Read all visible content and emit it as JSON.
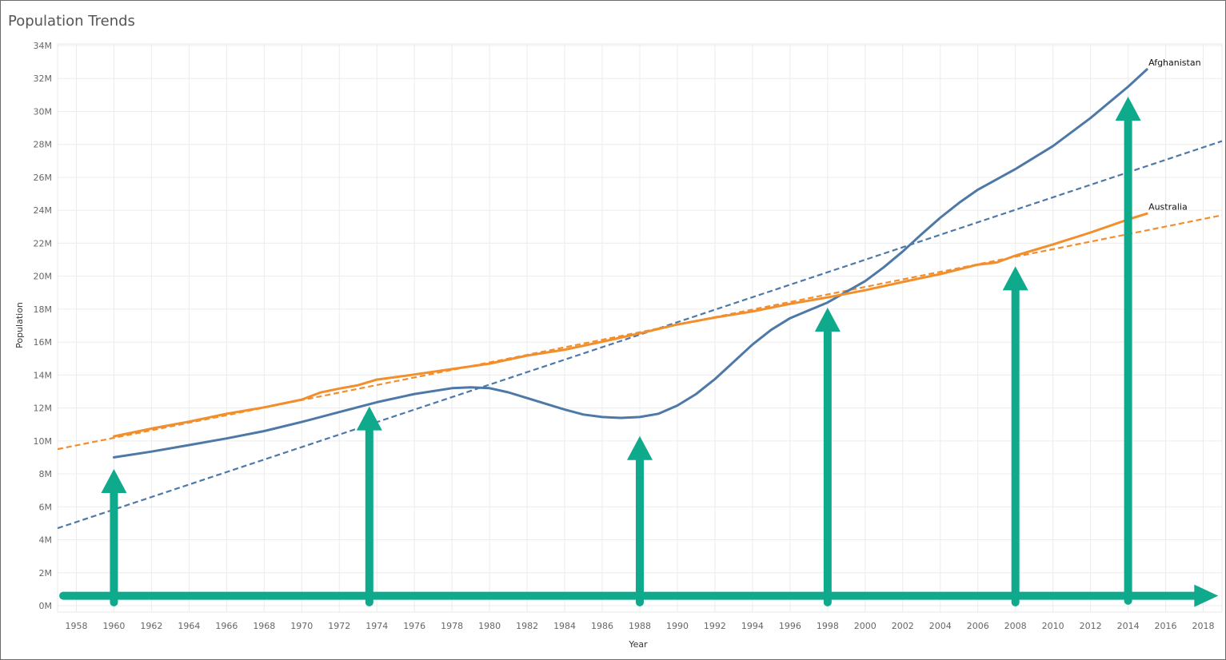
{
  "chart_data": {
    "type": "line",
    "title": "Population Trends",
    "xlabel": "Year",
    "ylabel": "Population",
    "xlim": [
      1957,
      2019
    ],
    "ylim": [
      0,
      34000000
    ],
    "grid": true,
    "x_ticks": [
      1958,
      1960,
      1962,
      1964,
      1966,
      1968,
      1970,
      1972,
      1974,
      1976,
      1978,
      1980,
      1982,
      1984,
      1986,
      1988,
      1990,
      1992,
      1994,
      1996,
      1998,
      2000,
      2002,
      2004,
      2006,
      2008,
      2010,
      2012,
      2014,
      2016,
      2018
    ],
    "y_ticks": [
      {
        "value": 0,
        "label": "0M"
      },
      {
        "value": 2000000,
        "label": "2M"
      },
      {
        "value": 4000000,
        "label": "4M"
      },
      {
        "value": 6000000,
        "label": "6M"
      },
      {
        "value": 8000000,
        "label": "8M"
      },
      {
        "value": 10000000,
        "label": "10M"
      },
      {
        "value": 12000000,
        "label": "12M"
      },
      {
        "value": 14000000,
        "label": "14M"
      },
      {
        "value": 16000000,
        "label": "16M"
      },
      {
        "value": 18000000,
        "label": "18M"
      },
      {
        "value": 20000000,
        "label": "20M"
      },
      {
        "value": 22000000,
        "label": "22M"
      },
      {
        "value": 24000000,
        "label": "24M"
      },
      {
        "value": 26000000,
        "label": "26M"
      },
      {
        "value": 28000000,
        "label": "28M"
      },
      {
        "value": 30000000,
        "label": "30M"
      },
      {
        "value": 32000000,
        "label": "32M"
      },
      {
        "value": 34000000,
        "label": "34M"
      }
    ],
    "series": [
      {
        "name": "Afghanistan",
        "color": "#4e79a7",
        "x": [
          1960,
          1962,
          1964,
          1966,
          1968,
          1970,
          1972,
          1974,
          1976,
          1978,
          1979,
          1980,
          1981,
          1982,
          1984,
          1985,
          1986,
          1987,
          1988,
          1989,
          1990,
          1991,
          1992,
          1993,
          1994,
          1995,
          1996,
          1998,
          2000,
          2001,
          2002,
          2003,
          2004,
          2005,
          2006,
          2008,
          2010,
          2012,
          2014,
          2015
        ],
        "values": [
          9000000,
          9350000,
          9750000,
          10150000,
          10600000,
          11150000,
          11750000,
          12350000,
          12850000,
          13200000,
          13250000,
          13200000,
          12950000,
          12600000,
          11900000,
          11600000,
          11450000,
          11400000,
          11450000,
          11650000,
          12150000,
          12850000,
          13750000,
          14800000,
          15850000,
          16750000,
          17450000,
          18400000,
          19700000,
          20550000,
          21500000,
          22550000,
          23550000,
          24450000,
          25250000,
          26500000,
          27900000,
          29600000,
          31500000,
          32550000
        ],
        "trend": {
          "x": [
            1957,
            2019
          ],
          "values": [
            4700000,
            28200000
          ]
        }
      },
      {
        "name": "Australia",
        "color": "#f28e2b",
        "x": [
          1960,
          1962,
          1964,
          1966,
          1968,
          1970,
          1971,
          1972,
          1973,
          1974,
          1976,
          1978,
          1980,
          1982,
          1984,
          1986,
          1988,
          1990,
          1992,
          1994,
          1996,
          1998,
          2000,
          2002,
          2004,
          2006,
          2007,
          2008,
          2010,
          2012,
          2014,
          2015
        ],
        "values": [
          10280000,
          10750000,
          11170000,
          11650000,
          12040000,
          12510000,
          12940000,
          13180000,
          13380000,
          13720000,
          14030000,
          14360000,
          14690000,
          15180000,
          15540000,
          16020000,
          16530000,
          17070000,
          17490000,
          17860000,
          18320000,
          18710000,
          19150000,
          19650000,
          20130000,
          20700000,
          20830000,
          21250000,
          21930000,
          22650000,
          23440000,
          23800000
        ],
        "trend": {
          "x": [
            1957,
            2019
          ],
          "values": [
            9500000,
            23700000
          ]
        }
      }
    ],
    "annotations": {
      "color": "#0fa98b",
      "arrows": [
        {
          "x": 1960,
          "from": 200000,
          "to": 8100000
        },
        {
          "x": 1973.6,
          "from": 200000,
          "to": 11900000
        },
        {
          "x": 1988,
          "from": 200000,
          "to": 10100000
        },
        {
          "x": 1998,
          "from": 200000,
          "to": 17900000
        },
        {
          "x": 2008,
          "from": 200000,
          "to": 20400000
        },
        {
          "x": 2014,
          "from": 300000,
          "to": 30700000
        }
      ],
      "timeline": {
        "from": 1957.3,
        "to": 2018.8,
        "value": 600000
      }
    }
  }
}
